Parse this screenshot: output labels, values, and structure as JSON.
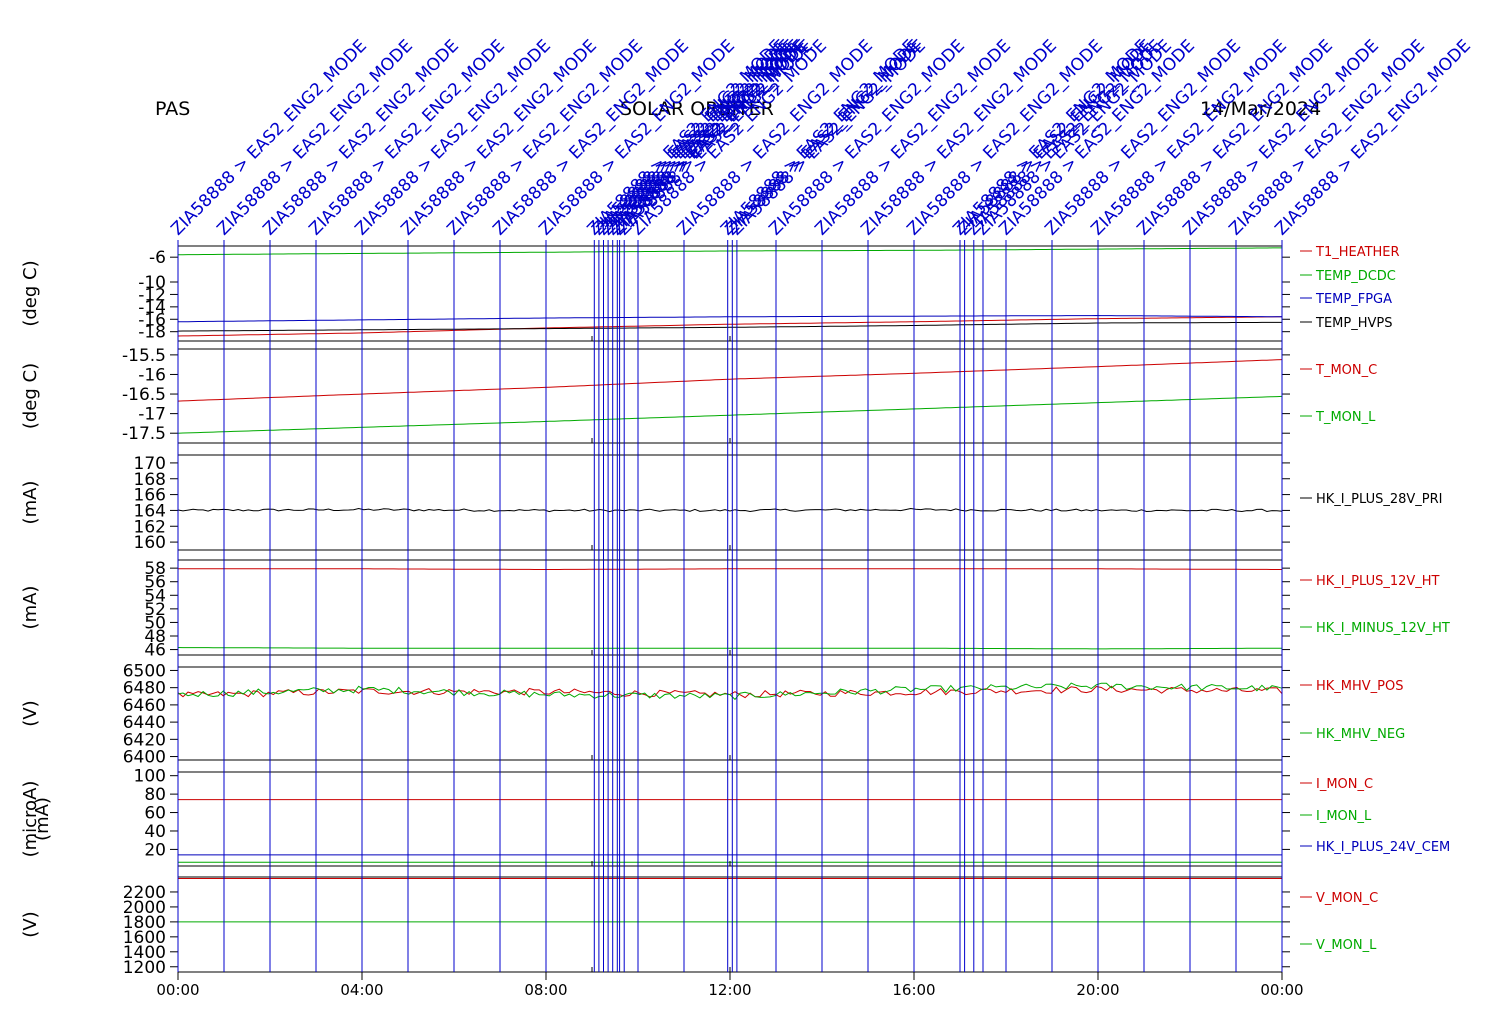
{
  "header": {
    "left": "PAS",
    "center": "SOLAR ORBITER",
    "right": "14/Mar/2024"
  },
  "chart_data": [
    {
      "type": "line",
      "ylabel": "(deg C)",
      "yticks": [
        -6,
        -10,
        -12,
        -14,
        -16,
        -18
      ],
      "ylim": [
        -19.5,
        -4.2
      ],
      "series": [
        {
          "name": "T1_HEATHER",
          "color": "#cc0000",
          "y": [
            -18.7,
            -18.2,
            -17.4,
            -16.8,
            -16.4,
            -15.9,
            -15.6
          ]
        },
        {
          "name": "TEMP_DCDC",
          "color": "#00aa00",
          "y": [
            -5.6,
            -5.4,
            -5.2,
            -5.0,
            -4.9,
            -4.7,
            -4.5
          ]
        },
        {
          "name": "TEMP_FPGA",
          "color": "#0000bb",
          "y": [
            -16.4,
            -16.1,
            -15.8,
            -15.6,
            -15.5,
            -15.4,
            -15.6
          ]
        },
        {
          "name": "TEMP_HVPS",
          "color": "#000000",
          "y": [
            -17.9,
            -17.7,
            -17.5,
            -17.3,
            -17.0,
            -16.6,
            -16.5
          ]
        }
      ]
    },
    {
      "type": "line",
      "ylabel": "(deg C)",
      "yticks": [
        -15.5,
        -16.0,
        -16.5,
        -17.0,
        -17.5
      ],
      "ylim": [
        -17.75,
        -15.35
      ],
      "series": [
        {
          "name": "T_MON_C",
          "color": "#cc0000",
          "y": [
            -16.68,
            -16.5,
            -16.33,
            -16.12,
            -15.97,
            -15.8,
            -15.62
          ]
        },
        {
          "name": "T_MON_L",
          "color": "#00aa00",
          "y": [
            -17.5,
            -17.35,
            -17.2,
            -17.04,
            -16.88,
            -16.72,
            -16.56
          ]
        }
      ]
    },
    {
      "type": "line",
      "ylabel": "(mA)",
      "yticks": [
        170,
        168,
        166,
        164,
        162,
        160
      ],
      "ylim": [
        159,
        171
      ],
      "series": [
        {
          "name": "HK_I_PLUS_28V_PRI",
          "color": "#000000",
          "y": [
            164.0,
            164.1,
            164.0,
            164.0,
            164.1,
            164.0,
            164.0
          ]
        }
      ]
    },
    {
      "type": "line",
      "ylabel": "(mA)",
      "yticks": [
        58,
        56,
        54,
        52,
        50,
        48,
        46
      ],
      "ylim": [
        45.2,
        59.2
      ],
      "series": [
        {
          "name": "HK_I_PLUS_12V_HT",
          "color": "#cc0000",
          "y": [
            57.9,
            57.9,
            57.8,
            57.9,
            57.9,
            57.9,
            57.8
          ]
        },
        {
          "name": "HK_I_MINUS_12V_HT",
          "color": "#00aa00",
          "y": [
            46.3,
            46.2,
            46.2,
            46.2,
            46.2,
            46.1,
            46.2
          ]
        }
      ]
    },
    {
      "type": "line",
      "ylabel": "(V)",
      "yticks": [
        6500,
        6480,
        6460,
        6440,
        6420,
        6400
      ],
      "ylim": [
        6396,
        6504
      ],
      "series": [
        {
          "name": "HK_MHV_POS",
          "color": "#cc0000",
          "y": [
            6471,
            6476,
            6475,
            6472,
            6475,
            6478,
            6476
          ]
        },
        {
          "name": "HK_MHV_NEG",
          "color": "#00aa00",
          "y": [
            6472,
            6478,
            6472,
            6470,
            6478,
            6482,
            6479
          ]
        }
      ]
    },
    {
      "type": "line",
      "ylabel": "(microA)",
      "ylabel2": "(mA)",
      "yticks": [
        100,
        80,
        60,
        40,
        20
      ],
      "ylim": [
        2,
        104
      ],
      "series": [
        {
          "name": "I_MON_C",
          "color": "#cc0000",
          "y": [
            74,
            74,
            74,
            74,
            74,
            74,
            74
          ]
        },
        {
          "name": "I_MON_L",
          "color": "#00aa00",
          "y": [
            6,
            6,
            6,
            6,
            6,
            6,
            6
          ]
        },
        {
          "name": "HK_I_PLUS_24V_CEM",
          "color": "#0000bb",
          "y": [
            14,
            14,
            14,
            14,
            14,
            14,
            14
          ]
        }
      ]
    },
    {
      "type": "line",
      "ylabel": "(V)",
      "yticks": [
        2200,
        2000,
        1800,
        1600,
        1400,
        1200
      ],
      "ylim": [
        1130,
        2400
      ],
      "series": [
        {
          "name": "V_MON_C",
          "color": "#cc0000",
          "y": [
            2380,
            2380,
            2380,
            2380,
            2380,
            2380,
            2380
          ]
        },
        {
          "name": "V_MON_L",
          "color": "#00aa00",
          "y": [
            1800,
            1800,
            1800,
            1800,
            1800,
            1800,
            1800
          ]
        }
      ]
    }
  ],
  "x_hours": [
    0,
    4,
    8,
    12,
    16,
    20,
    24
  ],
  "xtick_labels": [
    "00:00",
    "04:00",
    "08:00",
    "12:00",
    "16:00",
    "20:00",
    "00:00"
  ],
  "mode_event_hours": [
    0,
    1,
    2,
    3,
    4,
    5,
    6,
    7,
    8,
    9.05,
    9.15,
    9.25,
    9.35,
    9.45,
    9.55,
    9.6,
    9.7,
    10,
    11,
    11.95,
    12.05,
    12.15,
    13,
    14,
    15,
    16,
    17,
    17.1,
    17.3,
    17.5,
    18,
    19,
    20,
    21,
    22,
    23,
    24
  ],
  "mode_event_text": "ZIA58888 > EAS2_ENG2_MODE",
  "colors": {
    "events": "#0000cc",
    "axes": "#000000"
  }
}
